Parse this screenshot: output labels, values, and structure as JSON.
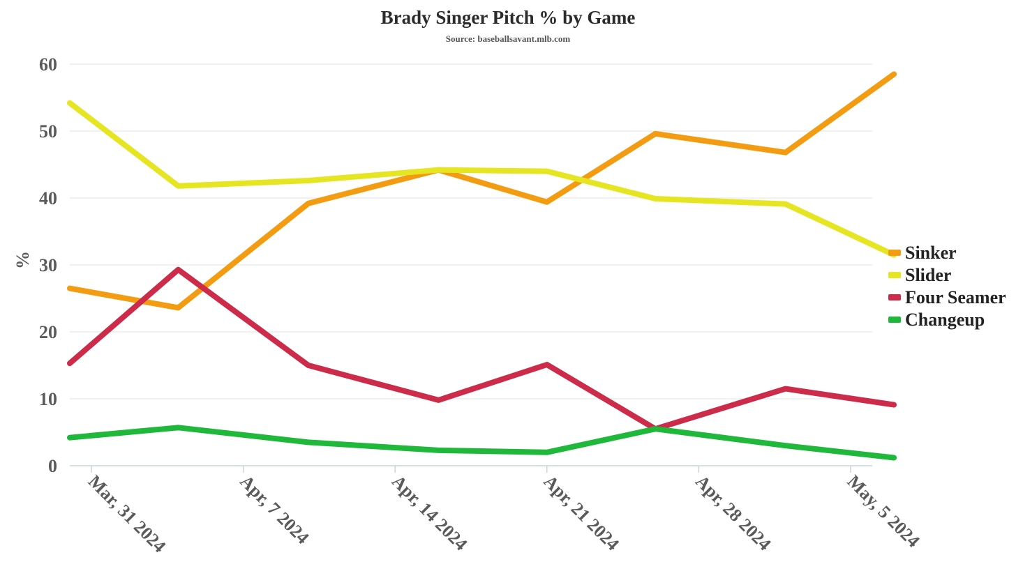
{
  "chart_data": {
    "type": "line",
    "title": "Brady Singer Pitch % by Game",
    "subtitle": "Source: baseballsavant.mlb.com",
    "xlabel": "",
    "ylabel": "%",
    "ylim": [
      0,
      60
    ],
    "yticks": [
      0,
      10,
      20,
      30,
      40,
      50,
      60
    ],
    "xlim": [
      "2024-03-30",
      "2024-05-06"
    ],
    "xticks": [
      {
        "date": "2024-03-31",
        "label": "Mar, 31 2024"
      },
      {
        "date": "2024-04-07",
        "label": "Apr, 7 2024"
      },
      {
        "date": "2024-04-14",
        "label": "Apr, 14 2024"
      },
      {
        "date": "2024-04-21",
        "label": "Apr, 21 2024"
      },
      {
        "date": "2024-04-28",
        "label": "Apr, 28 2024"
      },
      {
        "date": "2024-05-05",
        "label": "May, 5 2024"
      }
    ],
    "x": [
      "2024-03-30",
      "2024-04-04",
      "2024-04-10",
      "2024-04-16",
      "2024-04-21",
      "2024-04-26",
      "2024-05-02",
      "2024-05-07"
    ],
    "series": [
      {
        "name": "Sinker",
        "color": "#f39c12",
        "values": [
          26.5,
          23.6,
          39.2,
          44.2,
          39.4,
          49.6,
          46.8,
          58.5
        ]
      },
      {
        "name": "Slider",
        "color": "#e5e521",
        "values": [
          54.2,
          41.8,
          42.6,
          44.2,
          44.0,
          39.9,
          39.1,
          31.5
        ]
      },
      {
        "name": "Four Seamer",
        "color": "#cc2b4a",
        "values": [
          15.3,
          29.3,
          15.0,
          9.8,
          15.1,
          5.5,
          11.5,
          9.1
        ]
      },
      {
        "name": "Changeup",
        "color": "#1fb83b",
        "values": [
          4.2,
          5.7,
          3.5,
          2.3,
          2.0,
          5.5,
          3.0,
          1.2
        ]
      }
    ],
    "grid": true,
    "legend": "right"
  }
}
